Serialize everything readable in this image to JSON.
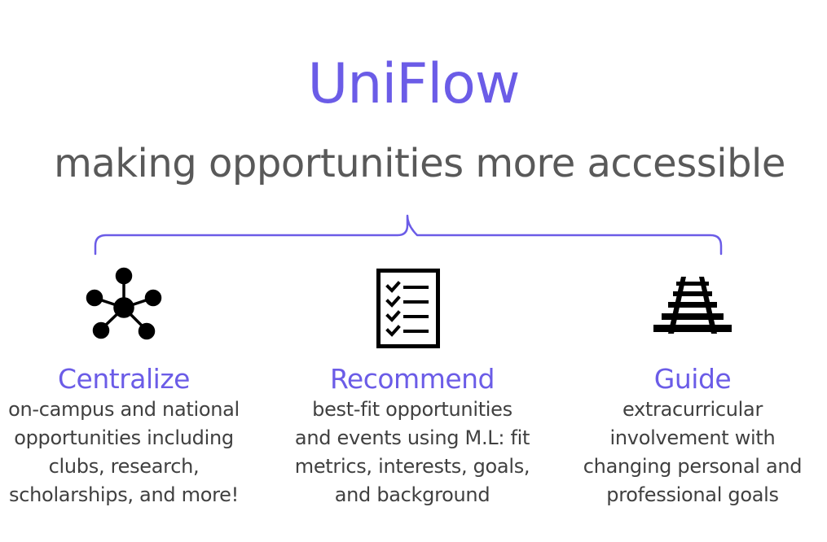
{
  "header": {
    "title": "UniFlow",
    "subtitle": "making opportunities more accessible"
  },
  "colors": {
    "accent": "#6b5ce7",
    "subtitle": "#595959",
    "body": "#404040"
  },
  "columns": [
    {
      "icon": "network-hub-icon",
      "heading": "Centralize",
      "body": "on-campus and national\nopportunities including\nclubs, research,\nscholarships, and more!"
    },
    {
      "icon": "checklist-icon",
      "heading": "Recommend",
      "body": "best-fit opportunities\nand events using M.L: fit\nmetrics, interests, goals,\nand background"
    },
    {
      "icon": "railroad-track-icon",
      "heading": "Guide",
      "body": "extracurricular\ninvolvement with\nchanging personal and\nprofessional goals"
    }
  ]
}
